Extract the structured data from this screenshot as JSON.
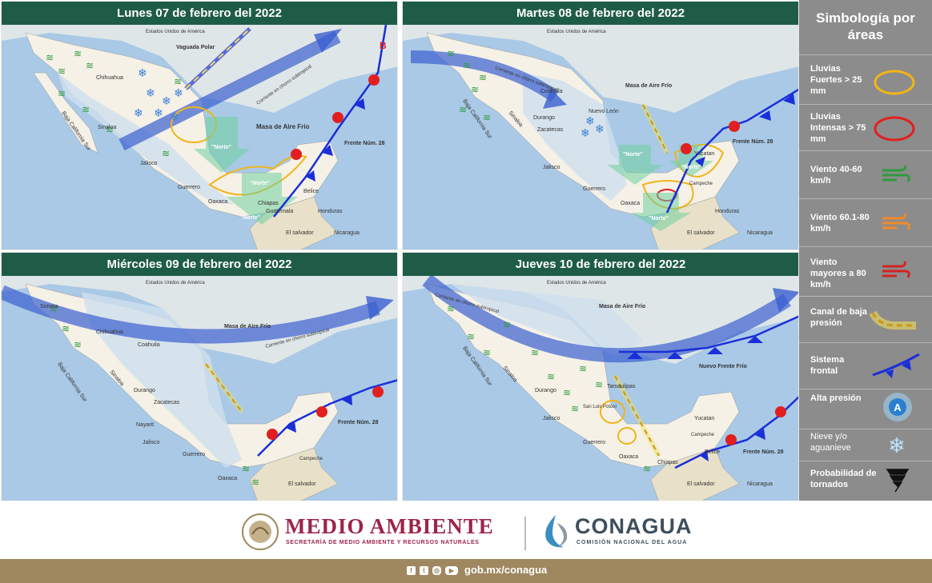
{
  "panels": [
    {
      "title": "Lunes 07 de febrero del 2022",
      "labels": {
        "usa": "Estados Unidos de América",
        "chihuahua": "Chihuahua",
        "sinaloa": "Sinaloa",
        "baja": "Baja California Sur",
        "jalisco": "Jalisco",
        "guerrero": "Guerrero",
        "oaxaca": "Oaxaca",
        "chiapas": "Chiapas",
        "guatemala": "Guatemala",
        "honduras": "Honduras",
        "salvador": "El salvador",
        "nicaragua": "Nicaragua",
        "belice": "Belice",
        "vaguada": "Vaguada Polar",
        "corriente": "Corriente en chorro subtropical",
        "masa": "Masa de Aire Frío",
        "norte1": "\"Norte\"",
        "norte2": "\"Norte\"",
        "norte3": "\"Norte\"",
        "frente": "Frente Núm. 28",
        "b": "B"
      }
    },
    {
      "title": "Martes 08 de febrero del 2022",
      "labels": {
        "usa": "Estados Unidos de América",
        "coahuila": "Coahuila",
        "nuevoleon": "Nuevo León",
        "durango": "Durango",
        "zacatecas": "Zacatecas",
        "sinaloa": "Sinaloa",
        "baja": "Baja California Sur",
        "jalisco": "Jalisco",
        "guerrero": "Guerrero",
        "oaxaca": "Oaxaca",
        "honduras": "Honduras",
        "nicaragua": "Nicaragua",
        "salvador": "El salvador",
        "yucatan": "Yucatan",
        "campeche": "Campeche",
        "corriente": "Corriente en chorro subtropical",
        "masa": "Masa de Aire Frío",
        "norte1": "\"Norte\"",
        "norte2": "\"Norte\"",
        "norte3": "\"Norte\"",
        "frente": "Frente Núm. 28"
      }
    },
    {
      "title": "Miércoles 09 de febrero del 2022",
      "labels": {
        "usa": "Estados Unidos de América",
        "chihuahua": "Chihuahua",
        "coahuila": "Coahuila",
        "sinaloa": "Sinaloa",
        "durango": "Durango",
        "zacatecas": "Zacatecas",
        "sonora": "Sonora",
        "baja": "Baja California Sur",
        "nayarit": "Nayarit",
        "jalisco": "Jalisco",
        "guerrero": "Guerrero",
        "oaxaca": "Oaxaca",
        "campeche": "Campeche",
        "salvador": "El salvador",
        "corriente": "Corriente en chorro subtropical",
        "masa": "Masa de Aire Frío",
        "frente": "Frente Núm. 28"
      }
    },
    {
      "title": "Jueves 10 de febrero del 2022",
      "labels": {
        "usa": "Estados Unidos de América",
        "baja": "Baja California Sur",
        "sinaloa": "Sinaloa",
        "durango": "Durango",
        "tamaulipas": "Tamaulipas",
        "slp": "San Luis Potosí",
        "jalisco": "Jalisco",
        "guerrero": "Guerrero",
        "oaxaca": "Oaxaca",
        "chiapas": "Chiapas",
        "campeche": "Campeche",
        "yucatan": "Yucatan",
        "belice": "Belice",
        "salvador": "El salvador",
        "nicaragua": "Nicaragua",
        "corriente": "Corriente en chorro subtropical",
        "masa": "Masa de Aire Frío",
        "nuevofrente": "Nuevo Frente Frío",
        "frente": "Frente Núm. 28"
      }
    }
  ],
  "legend": {
    "title": "Simbología por áreas",
    "items": [
      {
        "label": "Lluvias Fuertes > 25 mm",
        "icon": "yellow-ring-icon",
        "color": "#f2b418"
      },
      {
        "label": "Lluvias Intensas > 75 mm",
        "icon": "red-ring-icon",
        "color": "#e02020"
      },
      {
        "label": "Viento 40-60 km/h",
        "icon": "wind-green-icon",
        "color": "#2e9a3e"
      },
      {
        "label": "Viento 60.1-80 km/h",
        "icon": "wind-orange-icon",
        "color": "#f08a2a"
      },
      {
        "label": "Viento mayores a 80 km/h",
        "icon": "wind-red-icon",
        "color": "#d62222"
      },
      {
        "label": "Canal de baja presión",
        "icon": "low-pressure-trough-icon",
        "color": "#f2b418"
      },
      {
        "label": "Sistema frontal",
        "icon": "cold-front-icon",
        "color": "#1a2fd8"
      },
      {
        "label": "Alta presión",
        "icon": "high-pressure-icon",
        "color": "#2a7fd0"
      },
      {
        "label": "Nieve y/o aguanieve",
        "icon": "snowflake-icon",
        "color": "#bfe4ff"
      },
      {
        "label": "Probabilidad de tornados",
        "icon": "tornado-icon",
        "color": "#111111"
      }
    ]
  },
  "footer": {
    "brand1": "MEDIO AMBIENTE",
    "brand1_sub": "SECRETARÍA DE MEDIO AMBIENTE Y RECURSOS NATURALES",
    "brand2": "CONAGUA",
    "brand2_sub": "COMISIÓN NACIONAL DEL AGUA",
    "url": "gob.mx/conagua"
  }
}
